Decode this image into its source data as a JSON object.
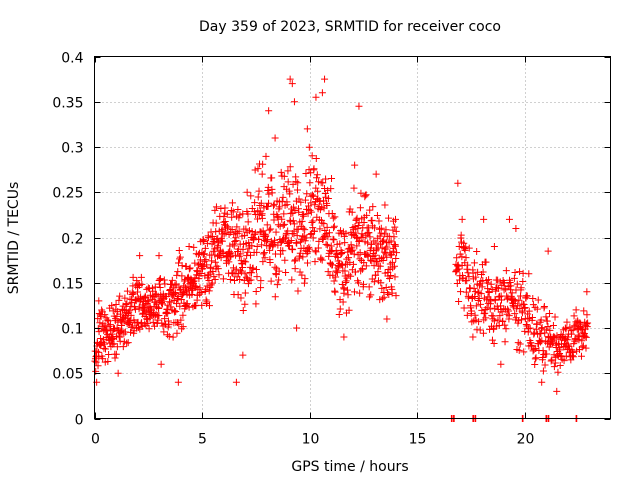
{
  "chart_data": {
    "type": "scatter",
    "title": "Day 359 of 2023, SRMTID for receiver coco",
    "xlabel": "GPS time / hours",
    "ylabel": "SRMTID / TECUs",
    "xlim": [
      0,
      24
    ],
    "ylim": [
      0,
      0.4
    ],
    "x_ticks": [
      0,
      5,
      10,
      15,
      20
    ],
    "x_tick_labels": [
      "0",
      "5",
      "10",
      "15",
      "20"
    ],
    "y_ticks": [
      0,
      0.05,
      0.1,
      0.15,
      0.2,
      0.25,
      0.3,
      0.35,
      0.4
    ],
    "y_tick_labels": [
      "0",
      "0.05",
      "0.1",
      "0.15",
      "0.2",
      "0.25",
      "0.3",
      "0.35",
      "0.4"
    ],
    "grid": true,
    "marker": "plus",
    "marker_color": "#ff0000",
    "series": [
      {
        "name": "SRMTID",
        "envelope_hours": [
          0.0,
          0.3,
          0.6,
          1.0,
          1.5,
          2.0,
          2.5,
          3.0,
          3.5,
          4.0,
          4.5,
          5.0,
          5.5,
          6.0,
          6.5,
          7.0,
          7.5,
          8.0,
          8.5,
          9.0,
          9.5,
          10.0,
          10.5,
          11.0,
          11.5,
          12.0,
          12.5,
          13.0,
          13.5,
          14.0
        ],
        "envelope_center": [
          0.06,
          0.1,
          0.09,
          0.1,
          0.11,
          0.13,
          0.12,
          0.13,
          0.12,
          0.14,
          0.15,
          0.16,
          0.18,
          0.2,
          0.19,
          0.18,
          0.2,
          0.22,
          0.19,
          0.23,
          0.2,
          0.24,
          0.23,
          0.21,
          0.16,
          0.19,
          0.2,
          0.19,
          0.18,
          0.17
        ],
        "envelope_spread": [
          0.03,
          0.04,
          0.03,
          0.04,
          0.04,
          0.04,
          0.03,
          0.04,
          0.04,
          0.05,
          0.04,
          0.05,
          0.05,
          0.05,
          0.06,
          0.07,
          0.08,
          0.08,
          0.07,
          0.09,
          0.07,
          0.08,
          0.07,
          0.07,
          0.06,
          0.08,
          0.07,
          0.06,
          0.06,
          0.05
        ],
        "envelope2_hours": [
          16.8,
          17.3,
          17.8,
          18.3,
          18.8,
          19.3,
          19.8,
          20.3,
          20.8,
          21.3,
          21.8,
          22.3,
          22.9
        ],
        "envelope2_center": [
          0.17,
          0.15,
          0.14,
          0.13,
          0.12,
          0.13,
          0.12,
          0.1,
          0.09,
          0.08,
          0.08,
          0.09,
          0.1
        ],
        "envelope2_spread": [
          0.06,
          0.05,
          0.05,
          0.05,
          0.05,
          0.05,
          0.05,
          0.04,
          0.04,
          0.04,
          0.03,
          0.03,
          0.03
        ],
        "peaks": [
          {
            "x": 0.1,
            "y": 0.04
          },
          {
            "x": 0.2,
            "y": 0.13
          },
          {
            "x": 1.1,
            "y": 0.05
          },
          {
            "x": 2.1,
            "y": 0.18
          },
          {
            "x": 3.0,
            "y": 0.18
          },
          {
            "x": 3.1,
            "y": 0.06
          },
          {
            "x": 3.9,
            "y": 0.04
          },
          {
            "x": 4.4,
            "y": 0.19
          },
          {
            "x": 5.6,
            "y": 0.23
          },
          {
            "x": 6.6,
            "y": 0.04
          },
          {
            "x": 6.9,
            "y": 0.07
          },
          {
            "x": 7.1,
            "y": 0.25
          },
          {
            "x": 7.8,
            "y": 0.27
          },
          {
            "x": 8.1,
            "y": 0.34
          },
          {
            "x": 8.4,
            "y": 0.31
          },
          {
            "x": 9.1,
            "y": 0.375
          },
          {
            "x": 9.2,
            "y": 0.37
          },
          {
            "x": 9.3,
            "y": 0.35
          },
          {
            "x": 9.4,
            "y": 0.1
          },
          {
            "x": 9.9,
            "y": 0.32
          },
          {
            "x": 10.3,
            "y": 0.355
          },
          {
            "x": 10.7,
            "y": 0.375
          },
          {
            "x": 10.6,
            "y": 0.36
          },
          {
            "x": 11.6,
            "y": 0.09
          },
          {
            "x": 12.3,
            "y": 0.345
          },
          {
            "x": 12.1,
            "y": 0.28
          },
          {
            "x": 13.1,
            "y": 0.27
          },
          {
            "x": 13.6,
            "y": 0.11
          },
          {
            "x": 14.0,
            "y": 0.22
          },
          {
            "x": 16.9,
            "y": 0.26
          },
          {
            "x": 17.1,
            "y": 0.22
          },
          {
            "x": 17.6,
            "y": 0.09
          },
          {
            "x": 18.1,
            "y": 0.22
          },
          {
            "x": 18.6,
            "y": 0.19
          },
          {
            "x": 18.9,
            "y": 0.06
          },
          {
            "x": 19.3,
            "y": 0.22
          },
          {
            "x": 19.6,
            "y": 0.21
          },
          {
            "x": 20.2,
            "y": 0.16
          },
          {
            "x": 20.8,
            "y": 0.04
          },
          {
            "x": 21.1,
            "y": 0.185
          },
          {
            "x": 21.5,
            "y": 0.03
          },
          {
            "x": 21.9,
            "y": 0.1
          },
          {
            "x": 22.4,
            "y": 0.12
          },
          {
            "x": 22.9,
            "y": 0.14
          }
        ],
        "zero_points": [
          16.6,
          16.7,
          17.6,
          17.7,
          19.9,
          21.0,
          21.1,
          22.4
        ]
      }
    ]
  }
}
